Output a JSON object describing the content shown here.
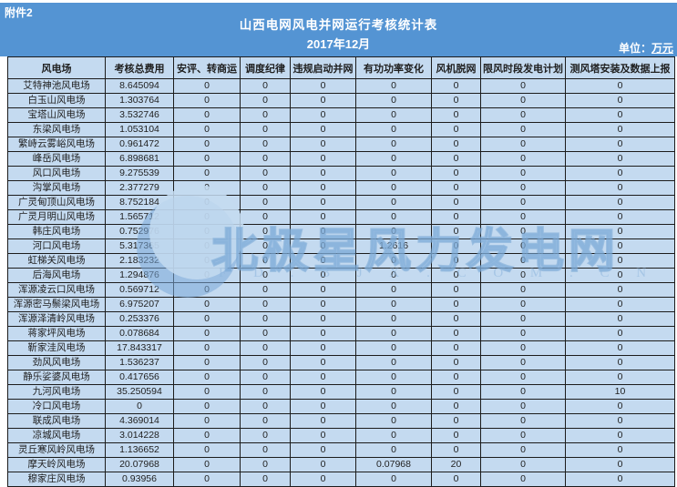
{
  "attachment_label": "附件2",
  "header": {
    "title": "山西电网风电并网运行考核统计表",
    "subtitle": "2017年12月",
    "unit_label": "单位：",
    "unit_value": "万元"
  },
  "watermark": {
    "text": "北极星风力发电网",
    "domain": "F D . B J X . C O M . C N",
    "logo": "bjx-circle-logo"
  },
  "colors": {
    "banner_blue": "#5494d3",
    "cell_blue": "#c4daf0",
    "grid_border": "#1c1c1c",
    "banner_text": "#ffffff",
    "cell_text": "#1f1f1f",
    "watermark_blue": "#85b0db"
  },
  "table": {
    "columns": [
      "风电场",
      "考核总费用",
      "安评、转商运",
      "调度纪律",
      "违规启动并网",
      "有功功率变化",
      "风机脱网",
      "限风时段发电计划",
      "测风塔安装及数据上报"
    ],
    "rows": [
      [
        "艾特神池风电场",
        "8.645094",
        "0",
        "0",
        "0",
        "0",
        "0",
        "0",
        "0"
      ],
      [
        "白玉山风电场",
        "1.303764",
        "0",
        "0",
        "0",
        "0",
        "0",
        "0",
        "0"
      ],
      [
        "宝塔山风电场",
        "3.532746",
        "0",
        "0",
        "0",
        "0",
        "0",
        "0",
        "0"
      ],
      [
        "东梁风电场",
        "1.053104",
        "0",
        "0",
        "0",
        "0",
        "0",
        "0",
        "0"
      ],
      [
        "繁峙云雾峪风电场",
        "0.961472",
        "0",
        "0",
        "0",
        "0",
        "0",
        "0",
        "0"
      ],
      [
        "峰岳风电场",
        "6.898681",
        "0",
        "0",
        "0",
        "0",
        "0",
        "0",
        "0"
      ],
      [
        "风口风电场",
        "9.275539",
        "0",
        "0",
        "0",
        "0",
        "0",
        "0",
        "0"
      ],
      [
        "沟掌风电场",
        "2.377279",
        "0",
        "0",
        "0",
        "0",
        "0",
        "0",
        "0"
      ],
      [
        "广灵甸顶山风电场",
        "8.752184",
        "0",
        "0",
        "0",
        "0",
        "0",
        "0",
        "0"
      ],
      [
        "广灵月明山风电场",
        "1.565712",
        "0",
        "0",
        "0",
        "0",
        "0",
        "0",
        "0"
      ],
      [
        "韩庄风电场",
        "0.752976",
        "0",
        "0",
        "0",
        "0",
        "0",
        "0",
        "0"
      ],
      [
        "河口风电场",
        "5.317365",
        "0",
        "0",
        "0",
        "1.2616",
        "0",
        "0",
        "0"
      ],
      [
        "虹梯关风电场",
        "2.183232",
        "0",
        "0",
        "0",
        "0",
        "0",
        "0",
        "0"
      ],
      [
        "后海风电场",
        "1.294876",
        "0",
        "0",
        "0",
        "0",
        "0",
        "0",
        "0"
      ],
      [
        "浑源凌云口风电场",
        "0.569712",
        "0",
        "0",
        "0",
        "0",
        "0",
        "0",
        "0"
      ],
      [
        "浑源密马鬃梁风电场",
        "6.975207",
        "0",
        "0",
        "0",
        "0",
        "0",
        "0",
        "0"
      ],
      [
        "浑源泽清岭风电场",
        "0.253376",
        "0",
        "0",
        "0",
        "0",
        "0",
        "0",
        "0"
      ],
      [
        "蒋家坪风电场",
        "0.078684",
        "0",
        "0",
        "0",
        "0",
        "0",
        "0",
        "0"
      ],
      [
        "靳家洼风电场",
        "17.843317",
        "0",
        "0",
        "0",
        "0",
        "0",
        "0",
        "0"
      ],
      [
        "劲风风电场",
        "1.536237",
        "0",
        "0",
        "0",
        "0",
        "0",
        "0",
        "0"
      ],
      [
        "静乐娑婆风电场",
        "0.417656",
        "0",
        "0",
        "0",
        "0",
        "0",
        "0",
        "0"
      ],
      [
        "九河风电场",
        "35.250594",
        "0",
        "0",
        "0",
        "0",
        "0",
        "0",
        "10"
      ],
      [
        "冷口风电场",
        "0",
        "0",
        "0",
        "0",
        "0",
        "0",
        "0",
        "0"
      ],
      [
        "联成风电场",
        "4.369014",
        "0",
        "0",
        "0",
        "0",
        "0",
        "0",
        "0"
      ],
      [
        "凉城风电场",
        "3.014228",
        "0",
        "0",
        "0",
        "0",
        "0",
        "0",
        "0"
      ],
      [
        "灵丘寒风岭风电场",
        "1.136652",
        "0",
        "0",
        "0",
        "0",
        "0",
        "0",
        "0"
      ],
      [
        "摩天岭风电场",
        "20.07968",
        "0",
        "0",
        "0",
        "0.07968",
        "20",
        "0",
        "0"
      ],
      [
        "穆家庄风电场",
        "0.93956",
        "0",
        "0",
        "0",
        "0",
        "0",
        "0",
        "0"
      ]
    ]
  }
}
